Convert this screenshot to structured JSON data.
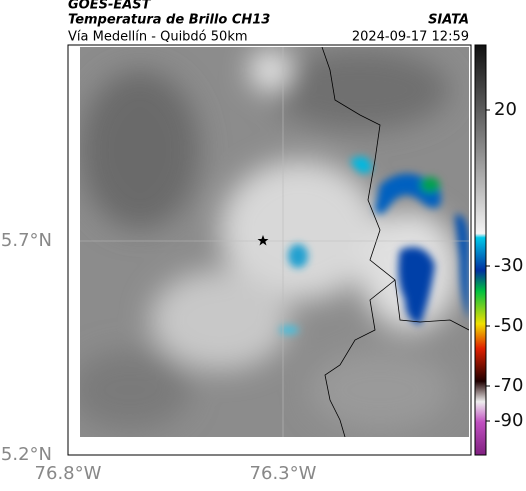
{
  "header": {
    "satellite": "GOES-EAST",
    "product": "Temperatura de Brillo CH13",
    "region": "Vía Medellín - Quibdó 50km",
    "source": "SIATA",
    "timestamp": "2024-09-17 12:59"
  },
  "map": {
    "lat_labels": [
      "5.7°N",
      "5.2°N"
    ],
    "lon_labels": [
      "76.8°W",
      "76.3°W"
    ]
  },
  "colorbar": {
    "tick_labels": [
      "20",
      "-30",
      "-50",
      "-70",
      "-90"
    ]
  }
}
